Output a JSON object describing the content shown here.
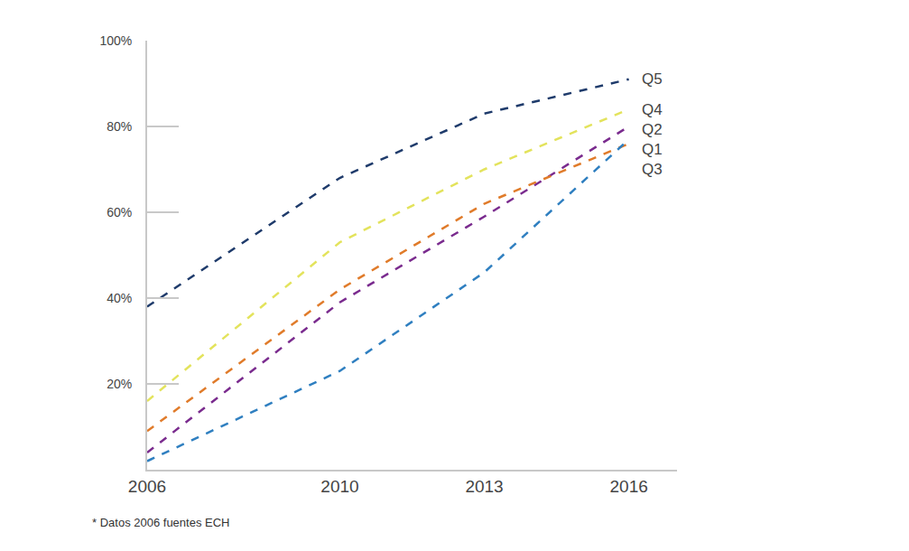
{
  "chart_data": {
    "type": "line",
    "x": [
      2006,
      2010,
      2013,
      2016
    ],
    "series": [
      {
        "name": "Q5",
        "color": "#1f3b6b",
        "values": [
          38,
          68,
          83,
          91
        ]
      },
      {
        "name": "Q4",
        "color": "#e3e35c",
        "values": [
          16,
          53,
          70,
          84
        ]
      },
      {
        "name": "Q2",
        "color": "#7a2b8e",
        "values": [
          4,
          39,
          59,
          80
        ]
      },
      {
        "name": "Q3",
        "color": "#e07b2a",
        "values": [
          9,
          42,
          62,
          76
        ]
      },
      {
        "name": "Q1",
        "color": "#2f7fc0",
        "values": [
          2,
          23,
          46,
          77
        ]
      }
    ],
    "xlim": [
      2006,
      2017
    ],
    "xticks": [
      2006,
      2010,
      2013,
      2016
    ],
    "ylim": [
      0,
      100
    ],
    "yticks": [
      {
        "value": 20,
        "label": "20%"
      },
      {
        "value": 40,
        "label": "40%"
      },
      {
        "value": 60,
        "label": "60%"
      },
      {
        "value": 80,
        "label": "80%"
      },
      {
        "value": 100,
        "label": "100%"
      }
    ],
    "grid": false,
    "line_style": "dash",
    "annotations": [
      "* Datos 2006 fuentes ECH"
    ]
  }
}
